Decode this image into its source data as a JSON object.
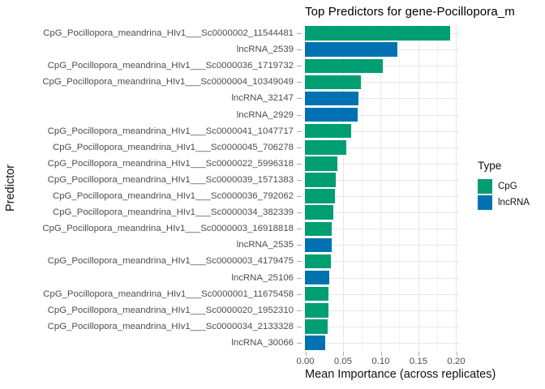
{
  "colors": {
    "cpg": "#009E73",
    "lncrna": "#0072B2",
    "grid_major": "#E7E7E7",
    "grid_minor": "#F3F3F3",
    "tick_mark": "#ACACAC",
    "axis_text": "#4D4D4D",
    "title_text": "#000000",
    "background": "#FFFFFF"
  },
  "chart_data": {
    "type": "bar",
    "orientation": "horizontal",
    "title": "Top Predictors for gene-Pocillopora_m",
    "xlabel": "Mean Importance (across replicates)",
    "ylabel": "Predictor",
    "xlim": [
      0,
      0.2054
    ],
    "grid": "major+minor",
    "xticks": [
      {
        "value": 0.0,
        "label": "0.00"
      },
      {
        "value": 0.05,
        "label": "0.05"
      },
      {
        "value": 0.1,
        "label": "0.10"
      },
      {
        "value": 0.15,
        "label": "0.15"
      },
      {
        "value": 0.2,
        "label": "0.20"
      }
    ],
    "xminor": [
      0.025,
      0.075,
      0.125,
      0.175
    ],
    "legend": {
      "title": "Type",
      "position": "right",
      "entries": [
        {
          "label": "CpG",
          "color": "#009E73"
        },
        {
          "label": "lncRNA",
          "color": "#0072B2"
        }
      ]
    },
    "bars": [
      {
        "label": "CpG_Pocillopora_meandrina_HIv1___Sc0000002_11544481",
        "type": "CpG",
        "value": 0.193
      },
      {
        "label": "lncRNA_2539",
        "type": "lncRNA",
        "value": 0.123
      },
      {
        "label": "CpG_Pocillopora_meandrina_HIv1___Sc0000036_1719732",
        "type": "CpG",
        "value": 0.103
      },
      {
        "label": "CpG_Pocillopora_meandrina_HIv1___Sc0000004_10349049",
        "type": "CpG",
        "value": 0.074
      },
      {
        "label": "lncRNA_32147",
        "type": "lncRNA",
        "value": 0.071
      },
      {
        "label": "lncRNA_2929",
        "type": "lncRNA",
        "value": 0.07
      },
      {
        "label": "CpG_Pocillopora_meandrina_HIv1___Sc0000041_1047717",
        "type": "CpG",
        "value": 0.061
      },
      {
        "label": "CpG_Pocillopora_meandrina_HIv1___Sc0000045_706278",
        "type": "CpG",
        "value": 0.055
      },
      {
        "label": "CpG_Pocillopora_meandrina_HIv1___Sc0000022_5996318",
        "type": "CpG",
        "value": 0.043
      },
      {
        "label": "CpG_Pocillopora_meandrina_HIv1___Sc0000039_1571383",
        "type": "CpG",
        "value": 0.041
      },
      {
        "label": "CpG_Pocillopora_meandrina_HIv1___Sc0000036_792062",
        "type": "CpG",
        "value": 0.04
      },
      {
        "label": "CpG_Pocillopora_meandrina_HIv1___Sc0000034_382339",
        "type": "CpG",
        "value": 0.038
      },
      {
        "label": "CpG_Pocillopora_meandrina_HIv1___Sc0000003_16918818",
        "type": "CpG",
        "value": 0.036
      },
      {
        "label": "lncRNA_2535",
        "type": "lncRNA",
        "value": 0.035
      },
      {
        "label": "CpG_Pocillopora_meandrina_HIv1___Sc0000003_4179475",
        "type": "CpG",
        "value": 0.034
      },
      {
        "label": "lncRNA_25106",
        "type": "lncRNA",
        "value": 0.032
      },
      {
        "label": "CpG_Pocillopora_meandrina_HIv1___Sc0000001_11675458",
        "type": "CpG",
        "value": 0.031
      },
      {
        "label": "CpG_Pocillopora_meandrina_HIv1___Sc0000020_1952310",
        "type": "CpG",
        "value": 0.031
      },
      {
        "label": "CpG_Pocillopora_meandrina_HIv1___Sc0000034_2133328",
        "type": "CpG",
        "value": 0.03
      },
      {
        "label": "lncRNA_30066",
        "type": "lncRNA",
        "value": 0.027
      }
    ]
  }
}
